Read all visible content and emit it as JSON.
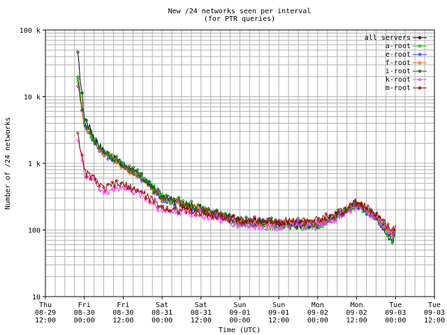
{
  "chart_data": {
    "type": "line",
    "title": [
      "New /24 networks seen per interval",
      "(for PTR queries)"
    ],
    "xlabel": "Time (UTC)",
    "ylabel": "Number of /24 networks",
    "yscale": "log",
    "ylim": [
      10,
      100000
    ],
    "y_ticks": [
      {
        "value": 10,
        "label": "10"
      },
      {
        "value": 100,
        "label": "100"
      },
      {
        "value": 1000,
        "label": "1 k"
      },
      {
        "value": 10000,
        "label": "10 k"
      },
      {
        "value": 100000,
        "label": "100 k"
      }
    ],
    "xlim": [
      "2024-08-29 12:00",
      "2024-09-03 12:00"
    ],
    "x_ticks": [
      {
        "day": "Thu",
        "date": "08-29",
        "time": "12:00"
      },
      {
        "day": "Fri",
        "date": "08-30",
        "time": "00:00"
      },
      {
        "day": "Fri",
        "date": "08-30",
        "time": "12:00"
      },
      {
        "day": "Sat",
        "date": "08-31",
        "time": "00:00"
      },
      {
        "day": "Sat",
        "date": "08-31",
        "time": "12:00"
      },
      {
        "day": "Sun",
        "date": "09-01",
        "time": "00:00"
      },
      {
        "day": "Sun",
        "date": "09-01",
        "time": "12:00"
      },
      {
        "day": "Mon",
        "date": "09-02",
        "time": "00:00"
      },
      {
        "day": "Mon",
        "date": "09-02",
        "time": "12:00"
      },
      {
        "day": "Tue",
        "date": "09-03",
        "time": "00:00"
      },
      {
        "day": "Tue",
        "date": "09-03",
        "time": "12:00"
      }
    ],
    "grid": true,
    "legend_position": "top-right",
    "series": [
      {
        "name": "all servers",
        "color": "#000000",
        "x": [
          "08-29 22:00",
          "08-30 00:00",
          "08-30 03:00",
          "08-30 06:00",
          "08-30 09:00",
          "08-30 12:00",
          "08-30 18:00",
          "08-31 00:00",
          "08-31 12:00",
          "09-01 00:00",
          "09-01 12:00",
          "09-02 00:00",
          "09-02 06:00",
          "09-02 12:00",
          "09-02 18:00",
          "09-02 23:00",
          "09-03 00:00"
        ],
        "y": [
          42000,
          5000,
          2500,
          1500,
          1200,
          900,
          600,
          300,
          200,
          140,
          130,
          120,
          170,
          250,
          160,
          65,
          100
        ]
      },
      {
        "name": "a-root",
        "color": "#00cc00",
        "x": [
          "08-29 22:00",
          "08-30 00:00",
          "08-30 03:00",
          "08-30 06:00",
          "08-30 09:00",
          "08-30 12:00",
          "08-30 18:00",
          "08-31 00:00",
          "08-31 12:00",
          "09-01 00:00",
          "09-01 12:00",
          "09-02 00:00",
          "09-02 06:00",
          "09-02 12:00",
          "09-02 18:00",
          "09-02 23:00",
          "09-03 00:00"
        ],
        "y": [
          20000,
          4000,
          2200,
          1500,
          1200,
          950,
          620,
          310,
          210,
          120,
          110,
          110,
          160,
          240,
          150,
          70,
          95
        ]
      },
      {
        "name": "e-root",
        "color": "#3333ff",
        "x": [
          "08-29 22:00",
          "08-30 00:00",
          "08-30 03:00",
          "08-30 06:00",
          "08-30 09:00",
          "08-30 12:00",
          "08-30 18:00",
          "08-31 00:00",
          "08-31 12:00",
          "09-01 00:00",
          "09-01 12:00",
          "09-02 00:00",
          "09-02 06:00",
          "09-02 12:00",
          "09-02 18:00",
          "09-02 23:00",
          "09-03 00:00"
        ],
        "y": [
          15000,
          3800,
          2100,
          1400,
          1150,
          900,
          600,
          300,
          200,
          130,
          125,
          125,
          165,
          245,
          155,
          80,
          100
        ]
      },
      {
        "name": "f-root",
        "color": "#ff6600",
        "x": [
          "08-29 22:00",
          "08-30 00:00",
          "08-30 03:00",
          "08-30 06:00",
          "08-30 09:00",
          "08-30 12:00",
          "08-30 18:00",
          "08-31 00:00",
          "08-31 12:00",
          "09-01 00:00",
          "09-01 12:00",
          "09-02 00:00",
          "09-02 06:00",
          "09-02 12:00",
          "09-02 18:00",
          "09-02 23:00",
          "09-03 00:00"
        ],
        "y": [
          16000,
          3900,
          2150,
          1450,
          1180,
          920,
          610,
          305,
          205,
          135,
          128,
          128,
          168,
          248,
          158,
          85,
          105
        ]
      },
      {
        "name": "i-root",
        "color": "#006600",
        "x": [
          "08-29 22:00",
          "08-30 00:00",
          "08-30 03:00",
          "08-30 06:00",
          "08-30 09:00",
          "08-30 12:00",
          "08-30 18:00",
          "08-31 00:00",
          "08-31 12:00",
          "09-01 00:00",
          "09-01 12:00",
          "09-02 00:00",
          "09-02 06:00",
          "09-02 12:00",
          "09-02 18:00",
          "09-02 23:00",
          "09-03 00:00"
        ],
        "y": [
          18000,
          4200,
          2300,
          1550,
          1250,
          960,
          630,
          320,
          215,
          130,
          120,
          120,
          165,
          250,
          160,
          75,
          100
        ]
      },
      {
        "name": "k-root",
        "color": "#ff44ff",
        "x": [
          "08-29 22:00",
          "08-30 00:00",
          "08-30 03:00",
          "08-30 06:00",
          "08-30 09:00",
          "08-30 12:00",
          "08-30 18:00",
          "08-31 00:00",
          "08-31 12:00",
          "09-01 00:00",
          "09-01 12:00",
          "09-02 00:00",
          "09-02 06:00",
          "09-02 12:00",
          "09-02 18:00",
          "09-02 23:00",
          "09-03 00:00"
        ],
        "y": [
          2500,
          700,
          550,
          350,
          420,
          440,
          330,
          200,
          170,
          120,
          110,
          115,
          150,
          230,
          150,
          85,
          90
        ]
      },
      {
        "name": "m-root",
        "color": "#990000",
        "x": [
          "08-29 22:00",
          "08-30 00:00",
          "08-30 03:00",
          "08-30 06:00",
          "08-30 09:00",
          "08-30 12:00",
          "08-30 18:00",
          "08-31 00:00",
          "08-31 12:00",
          "09-01 00:00",
          "09-01 12:00",
          "09-02 00:00",
          "09-02 06:00",
          "09-02 12:00",
          "09-02 18:00",
          "09-02 23:00",
          "09-03 00:00"
        ],
        "y": [
          3000,
          750,
          600,
          400,
          480,
          480,
          360,
          220,
          180,
          140,
          135,
          140,
          175,
          260,
          180,
          95,
          120
        ]
      }
    ]
  }
}
